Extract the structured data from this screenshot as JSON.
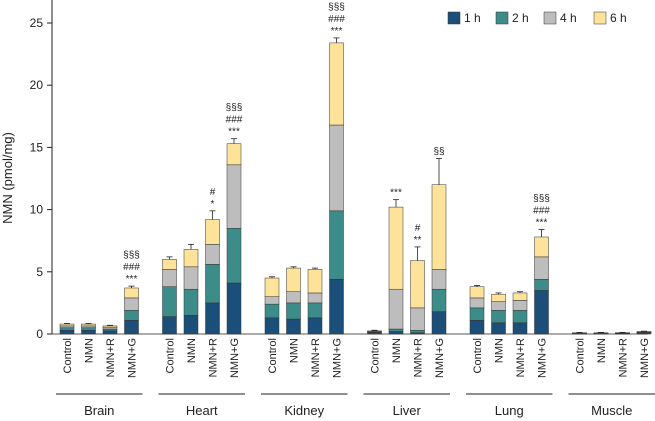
{
  "chart_data": {
    "type": "bar",
    "stacked": true,
    "ylabel": "NMN (pmol/mg)",
    "ylim": [
      0,
      27.5
    ],
    "yticks": [
      0,
      5,
      10,
      15,
      20,
      25
    ],
    "legend_position": "top-right",
    "series_colors": [
      "#1b4f7a",
      "#3c8c8a",
      "#bdbdbd",
      "#fde29a"
    ],
    "series_names": [
      "1 h",
      "2 h",
      "4 h",
      "6 h"
    ],
    "groups": [
      {
        "name": "Brain",
        "bars": [
          {
            "label": "Control",
            "values": [
              0.3,
              0.2,
              0.15,
              0.15
            ],
            "errors": [
              0.05,
              0.05,
              0.05,
              0.05
            ],
            "sig": []
          },
          {
            "label": "NMN",
            "values": [
              0.3,
              0.2,
              0.15,
              0.15
            ],
            "errors": [
              0.05,
              0.05,
              0.05,
              0.05
            ],
            "sig": []
          },
          {
            "label": "NMN+R",
            "values": [
              0.25,
              0.15,
              0.15,
              0.1
            ],
            "errors": [
              0.05,
              0.05,
              0.05,
              0.05
            ],
            "sig": []
          },
          {
            "label": "NMN+G",
            "values": [
              1.1,
              0.8,
              1.0,
              0.8
            ],
            "errors": [
              0.1,
              0.1,
              0.1,
              0.15
            ],
            "sig": [
              "§§§",
              "###",
              "***"
            ]
          }
        ]
      },
      {
        "name": "Heart",
        "bars": [
          {
            "label": "Control",
            "values": [
              1.4,
              2.4,
              1.4,
              0.8
            ],
            "errors": [
              0.2,
              0.3,
              0.2,
              0.2
            ],
            "sig": []
          },
          {
            "label": "NMN",
            "values": [
              1.5,
              2.1,
              1.8,
              1.4
            ],
            "errors": [
              0.2,
              0.3,
              0.2,
              0.4
            ],
            "sig": []
          },
          {
            "label": "NMN+R",
            "values": [
              2.5,
              3.1,
              1.6,
              2.0
            ],
            "errors": [
              0.3,
              0.4,
              0.3,
              0.7
            ],
            "sig": [
              "#",
              "*"
            ]
          },
          {
            "label": "NMN+G",
            "values": [
              4.1,
              4.4,
              5.1,
              1.7
            ],
            "errors": [
              0.2,
              0.5,
              1.2,
              0.4
            ],
            "sig": [
              "§§§",
              "###",
              "***"
            ]
          }
        ]
      },
      {
        "name": "Kidney",
        "bars": [
          {
            "label": "Control",
            "values": [
              1.3,
              1.1,
              0.6,
              1.5
            ],
            "errors": [
              0.1,
              0.1,
              0.1,
              0.1
            ],
            "sig": []
          },
          {
            "label": "NMN",
            "values": [
              1.2,
              1.3,
              0.9,
              1.9
            ],
            "errors": [
              0.1,
              0.1,
              0.1,
              0.1
            ],
            "sig": []
          },
          {
            "label": "NMN+R",
            "values": [
              1.3,
              1.2,
              0.8,
              1.9
            ],
            "errors": [
              0.1,
              0.1,
              0.1,
              0.1
            ],
            "sig": []
          },
          {
            "label": "NMN+G",
            "values": [
              4.4,
              5.5,
              6.9,
              6.6
            ],
            "errors": [
              0.3,
              0.4,
              0.8,
              0.4
            ],
            "sig": [
              "§§§",
              "###",
              "***"
            ]
          }
        ]
      },
      {
        "name": "Liver",
        "bars": [
          {
            "label": "Control",
            "values": [
              0.1,
              0.05,
              0.05,
              0.05
            ],
            "errors": [
              0.05,
              0.05,
              0.05,
              0.05
            ],
            "sig": []
          },
          {
            "label": "NMN",
            "values": [
              0.2,
              0.2,
              3.2,
              6.6
            ],
            "errors": [
              0.1,
              0.1,
              0.3,
              0.6
            ],
            "sig": [
              "***"
            ]
          },
          {
            "label": "NMN+R",
            "values": [
              0.1,
              0.2,
              1.8,
              3.8
            ],
            "errors": [
              0.1,
              0.1,
              0.4,
              1.1
            ],
            "sig": [
              "#",
              "**"
            ]
          },
          {
            "label": "NMN+G",
            "values": [
              1.8,
              1.8,
              1.6,
              6.8
            ],
            "errors": [
              0.6,
              0.6,
              0.3,
              2.1
            ],
            "sig": [
              "§§"
            ]
          }
        ]
      },
      {
        "name": "Lung",
        "bars": [
          {
            "label": "Control",
            "values": [
              1.1,
              1.0,
              0.8,
              0.9
            ],
            "errors": [
              0.1,
              0.1,
              0.1,
              0.1
            ],
            "sig": []
          },
          {
            "label": "NMN",
            "values": [
              0.9,
              1.0,
              0.7,
              0.6
            ],
            "errors": [
              0.1,
              0.1,
              0.1,
              0.1
            ],
            "sig": []
          },
          {
            "label": "NMN+R",
            "values": [
              0.9,
              1.0,
              0.8,
              0.6
            ],
            "errors": [
              0.1,
              0.1,
              0.1,
              0.1
            ],
            "sig": []
          },
          {
            "label": "NMN+G",
            "values": [
              3.5,
              0.9,
              1.8,
              1.6
            ],
            "errors": [
              0.2,
              0.2,
              0.3,
              0.6
            ],
            "sig": [
              "§§§",
              "###",
              "***"
            ]
          }
        ]
      },
      {
        "name": "Muscle",
        "bars": [
          {
            "label": "Control",
            "values": [
              0.05,
              0.02,
              0.02,
              0.01
            ],
            "errors": [
              0.02,
              0.02,
              0.02,
              0.02
            ],
            "sig": []
          },
          {
            "label": "NMN",
            "values": [
              0.05,
              0.02,
              0.02,
              0.01
            ],
            "errors": [
              0.02,
              0.02,
              0.02,
              0.02
            ],
            "sig": []
          },
          {
            "label": "NMN+R",
            "values": [
              0.06,
              0.02,
              0.02,
              0.01
            ],
            "errors": [
              0.02,
              0.02,
              0.02,
              0.02
            ],
            "sig": []
          },
          {
            "label": "NMN+G",
            "values": [
              0.1,
              0.05,
              0.03,
              0.02
            ],
            "errors": [
              0.03,
              0.03,
              0.03,
              0.03
            ],
            "sig": []
          }
        ]
      }
    ]
  }
}
